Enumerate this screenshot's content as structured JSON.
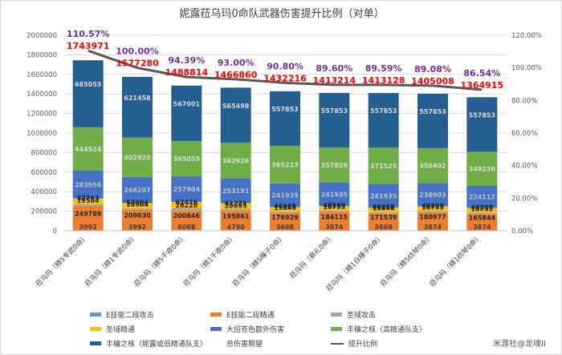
{
  "chart_data": {
    "type": "bar",
    "title": "妮露菈乌玛0命队武器伤害提升比例（对单）",
    "categories": [
      "菈乌玛（精5专武0命）",
      "菈乌玛（精1专武0命）",
      "菈乌玛（精5千夜0命）",
      "菈乌玛（精1千夜0命）",
      "菈乌玛（精5睡子0命）",
      "菈乌玛（祭礼0命）",
      "菈乌玛（精1白睡子0命）",
      "菈乌玛（精5纺琴0命）",
      "菈乌玛（精1纺琴0命）"
    ],
    "left_axis": {
      "min": 0,
      "max": 2000000,
      "step": 200000,
      "ticks": [
        "0",
        "200000",
        "400000",
        "600000",
        "800000",
        "1000000",
        "1200000",
        "1400000",
        "1600000",
        "1800000",
        "2000000"
      ]
    },
    "right_axis": {
      "min": 0,
      "max": 120,
      "step": 20,
      "ticks": [
        "0.00%",
        "20.00%",
        "40.00%",
        "60.00%",
        "80.00%",
        "100.00%",
        "120.00%"
      ]
    },
    "series": [
      {
        "name": "E技能二段攻击",
        "color": "#5b9bd5",
        "values": [
          3992,
          3992,
          6068,
          4790,
          3668,
          3874,
          3668,
          3874,
          3874
        ]
      },
      {
        "name": "E技能二段精通",
        "color": "#ed7d31",
        "values": [
          249789,
          209630,
          200846,
          195861,
          176929,
          184115,
          171539,
          180977,
          165844
        ]
      },
      {
        "name": "圣域攻击",
        "color": "#a5a5a5",
        "values": [
          19584,
          16904,
          26220,
          20695,
          15846,
          16733,
          15846,
          16733,
          16733
        ]
      },
      {
        "name": "圣域精通",
        "color": "#ffc000",
        "values": [
          57263,
          53684,
          62416,
          61271,
          46269,
          48280,
          46269,
          48280,
          48280
        ]
      },
      {
        "name": "大招苍色额外伤害",
        "color": "#4472c4",
        "values": [
          283956,
          266207,
          257904,
          253191,
          241935,
          241935,
          241935,
          238903,
          224112
        ]
      },
      {
        "name": "丰穰之核（高精通队支）",
        "color": "#70ad47",
        "values": [
          444524,
          402920,
          365059,
          362926,
          385223,
          357826,
          371525,
          356402,
          349236
        ]
      },
      {
        "name": "丰穰之核（妮露或低精通队支）",
        "color": "#255e91",
        "values": [
          685053,
          621458,
          567001,
          565498,
          557853,
          557853,
          557853,
          557853,
          557853
        ]
      }
    ],
    "bar_label_series": [
      "E技能二段攻击",
      "E技能二段精通",
      "圣域攻击",
      "圣域精通",
      "大招苍色额外伤害",
      "丰穰之核（高精通队支）",
      "丰穰之核（妮露或低精通队支）"
    ],
    "display_labels": {
      "E技能二段攻击": [
        "3992",
        "3992",
        "6068",
        "4790",
        "3668",
        "3874",
        "3668",
        "3874",
        "3874"
      ],
      "E技能二段精通": [
        "249789",
        "209630",
        "200846",
        "195861",
        "176929",
        "184115",
        "171539",
        "180977",
        "165844"
      ],
      "圣域攻击": [
        "19584",
        "16904",
        "26220",
        "20695",
        "15846",
        "16733",
        "15846",
        "16733",
        "16733"
      ],
      "圣域精通": [
        "57263",
        "53684",
        "62416",
        "61271",
        "46269",
        "48280",
        "46269",
        "48280",
        "48280"
      ],
      "大招苍色额外伤害": [
        "283956",
        "266207",
        "257904",
        "253191",
        "241935",
        "241935",
        "241935",
        "238903",
        "224112"
      ],
      "丰穰之核（高精通队支）": [
        "444524",
        "402920",
        "365059",
        "362926",
        "385223",
        "357826",
        "371525",
        "356402",
        "349236"
      ],
      "丰穰之核（妮露或低精通队支）": [
        "685053",
        "621458",
        "567001",
        "565498",
        "557853",
        "557853",
        "557853",
        "557853",
        "557853"
      ]
    },
    "totals": {
      "name": "总伤害期望",
      "values": [
        "1743971",
        "1577280",
        "1488814",
        "1466860",
        "1432216",
        "1413214",
        "1413128",
        "1405008",
        "1364915"
      ],
      "color": "#ff0000"
    },
    "line": {
      "name": "提升比例",
      "color": "#595959",
      "values": [
        110.57,
        100.0,
        94.39,
        93.0,
        90.8,
        89.6,
        89.59,
        89.08,
        86.54
      ],
      "labels": [
        "110.57%",
        "100.00%",
        "94.39%",
        "93.00%",
        "90.80%",
        "89.60%",
        "89.59%",
        "89.08%",
        "86.54%"
      ],
      "label_color": "#7030a0"
    },
    "legend": [
      {
        "name": "E技能二段攻击",
        "kind": "bar",
        "color": "#5b9bd5"
      },
      {
        "name": "E技能二段精通",
        "kind": "bar",
        "color": "#ed7d31"
      },
      {
        "name": "圣域攻击",
        "kind": "bar",
        "color": "#a5a5a5"
      },
      {
        "name": "圣域精通",
        "kind": "bar",
        "color": "#ffc000"
      },
      {
        "name": "大招苍色额外伤害",
        "kind": "bar",
        "color": "#4472c4"
      },
      {
        "name": "丰穰之核（高精通队支）",
        "kind": "bar",
        "color": "#70ad47"
      },
      {
        "name": "丰穰之核（妮露或低精通队支）",
        "kind": "bar",
        "color": "#255e91"
      },
      {
        "name": "总伤害期望",
        "kind": "none",
        "color": "#ffffff"
      },
      {
        "name": "提升比例",
        "kind": "line",
        "color": "#595959"
      }
    ]
  },
  "watermark": "米游社@龙魂II"
}
